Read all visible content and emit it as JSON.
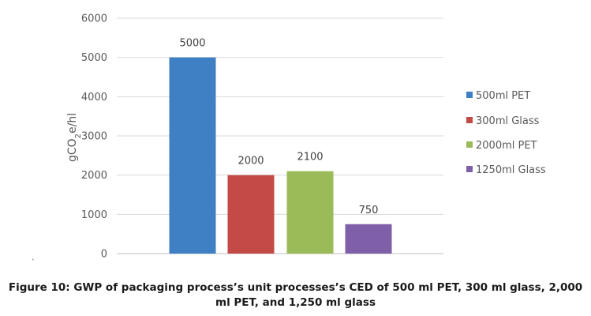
{
  "chart_data": {
    "type": "bar",
    "categories": [
      "500ml PET",
      "300ml Glass",
      "2000ml PET",
      "1250ml Glass"
    ],
    "values": [
      5000,
      2000,
      2100,
      750
    ],
    "data_labels": [
      "5000",
      "2000",
      "2100",
      "750"
    ],
    "colors": [
      "#3f7fc4",
      "#c34a47",
      "#9bbb59",
      "#7f5fa7"
    ],
    "ylabel": "gCO2e/hl",
    "ylabel_parts": {
      "before": "gCO",
      "sub": "2",
      "after": "e/hl"
    },
    "ylim": [
      0,
      6000
    ],
    "yticks": [
      0,
      1000,
      2000,
      3000,
      4000,
      5000,
      6000
    ],
    "grid": true,
    "legend": [
      "500ml PET",
      "300ml Glass",
      "2000ml PET",
      "1250ml Glass"
    ],
    "legend_position": "right"
  },
  "caption": {
    "line1": "Figure 10: GWP of packaging process’s unit processes’s CED of 500 ml PET, 300 ml glass, 2,000",
    "line2": "ml PET, and 1,250 ml glass"
  },
  "stray_mark": "`"
}
